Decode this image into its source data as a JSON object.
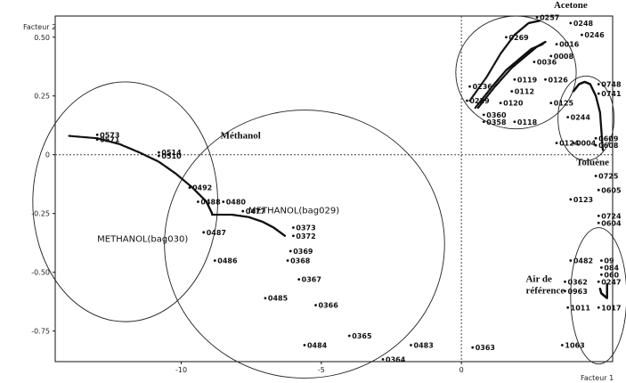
{
  "chart_data": {
    "type": "scatter",
    "title": "",
    "xlabel": "Facteur 1",
    "ylabel": "Facteur 2",
    "xlim": [
      -14.5,
      5.4
    ],
    "ylim": [
      -0.88,
      0.59
    ],
    "x_ticks": [
      {
        "value": -10,
        "label": "-10"
      },
      {
        "value": -5,
        "label": "-5"
      },
      {
        "value": 0,
        "label": "0"
      }
    ],
    "y_ticks": [
      {
        "value": 0.5,
        "label": "0.50"
      },
      {
        "value": 0.25,
        "label": "0.25"
      },
      {
        "value": 0,
        "label": "0"
      },
      {
        "value": -0.25,
        "label": "-0.25"
      },
      {
        "value": -0.5,
        "label": "-0.50"
      },
      {
        "value": -0.75,
        "label": "-0.75"
      }
    ],
    "reference_lines": [
      {
        "axis": "x",
        "value": 0,
        "style": "dotted"
      },
      {
        "axis": "y",
        "value": 0,
        "style": "dotted"
      }
    ],
    "trajectories": [
      {
        "name": "bag030",
        "points": [
          [
            -14,
            0.08
          ],
          [
            -13,
            0.07
          ],
          [
            -12.2,
            0.045
          ],
          [
            -11.5,
            0.01
          ],
          [
            -10.8,
            -0.03
          ],
          [
            -10.2,
            -0.08
          ],
          [
            -9.6,
            -0.14
          ],
          [
            -9.1,
            -0.2
          ],
          [
            -8.9,
            -0.25
          ]
        ]
      },
      {
        "name": "bag029",
        "points": [
          [
            -8.9,
            -0.255
          ],
          [
            -8.2,
            -0.255
          ],
          [
            -7.6,
            -0.265
          ],
          [
            -7.1,
            -0.285
          ],
          [
            -6.7,
            -0.31
          ],
          [
            -6.3,
            -0.345
          ]
        ]
      },
      {
        "name": "acetone-a",
        "points": [
          [
            0.3,
            0.23
          ],
          [
            0.9,
            0.33
          ],
          [
            1.4,
            0.43
          ],
          [
            1.9,
            0.51
          ],
          [
            2.4,
            0.56
          ],
          [
            2.8,
            0.57
          ]
        ]
      },
      {
        "name": "acetone-b",
        "points": [
          [
            0.5,
            0.2
          ],
          [
            1.1,
            0.29
          ],
          [
            1.6,
            0.36
          ],
          [
            2.1,
            0.41
          ],
          [
            2.5,
            0.45
          ],
          [
            2.9,
            0.47
          ]
        ]
      },
      {
        "name": "acetone-c",
        "points": [
          [
            0.6,
            0.2
          ],
          [
            1.2,
            0.29
          ],
          [
            1.8,
            0.37
          ],
          [
            2.3,
            0.42
          ],
          [
            2.7,
            0.46
          ],
          [
            3.0,
            0.48
          ]
        ]
      },
      {
        "name": "toluene",
        "points": [
          [
            4.0,
            0.27
          ],
          [
            4.2,
            0.3
          ],
          [
            4.4,
            0.31
          ],
          [
            4.6,
            0.3
          ],
          [
            4.8,
            0.25
          ],
          [
            4.95,
            0.18
          ],
          [
            5.0,
            0.1
          ],
          [
            5.05,
            0.02
          ]
        ]
      },
      {
        "name": "air",
        "points": [
          [
            4.95,
            -0.57
          ],
          [
            5.0,
            -0.59
          ],
          [
            5.1,
            -0.6
          ],
          [
            5.2,
            -0.61
          ],
          [
            5.2,
            -0.58
          ],
          [
            5.2,
            -0.55
          ]
        ]
      }
    ],
    "labeled_points": [
      {
        "label": "0573",
        "x": -13.0,
        "y": 0.085
      },
      {
        "label": "0571",
        "x": -13.0,
        "y": 0.065
      },
      {
        "label": "0514",
        "x": -10.8,
        "y": 0.01
      },
      {
        "label": "0510",
        "x": -10.8,
        "y": -0.005
      },
      {
        "label": "0492",
        "x": -9.7,
        "y": -0.14
      },
      {
        "label": "0488",
        "x": -9.4,
        "y": -0.2
      },
      {
        "label": "0487",
        "x": -9.2,
        "y": -0.33
      },
      {
        "label": "0486",
        "x": -8.8,
        "y": -0.45
      },
      {
        "label": "0485",
        "x": -7.0,
        "y": -0.61
      },
      {
        "label": "0484",
        "x": -5.6,
        "y": -0.81
      },
      {
        "label": "0480",
        "x": -8.5,
        "y": -0.2
      },
      {
        "label": "0477",
        "x": -7.8,
        "y": -0.24
      },
      {
        "label": "0373",
        "x": -6.0,
        "y": -0.31
      },
      {
        "label": "0372",
        "x": -6.0,
        "y": -0.345
      },
      {
        "label": "0369",
        "x": -6.1,
        "y": -0.41
      },
      {
        "label": "0368",
        "x": -6.2,
        "y": -0.45
      },
      {
        "label": "0367",
        "x": -5.8,
        "y": -0.53
      },
      {
        "label": "0366",
        "x": -5.2,
        "y": -0.64
      },
      {
        "label": "0365",
        "x": -4.0,
        "y": -0.77
      },
      {
        "label": "0364",
        "x": -2.8,
        "y": -0.87
      },
      {
        "label": "0483",
        "x": -1.8,
        "y": -0.81
      },
      {
        "label": "0363",
        "x": 0.4,
        "y": -0.82
      },
      {
        "label": "0257",
        "x": 2.7,
        "y": 0.585
      },
      {
        "label": "0248",
        "x": 3.9,
        "y": 0.56
      },
      {
        "label": "0246",
        "x": 4.3,
        "y": 0.51
      },
      {
        "label": "0269",
        "x": 1.6,
        "y": 0.5
      },
      {
        "label": "0016",
        "x": 3.4,
        "y": 0.47
      },
      {
        "label": "0008",
        "x": 3.2,
        "y": 0.42
      },
      {
        "label": "0036",
        "x": 2.6,
        "y": 0.395
      },
      {
        "label": "0119",
        "x": 1.9,
        "y": 0.32
      },
      {
        "label": "0126",
        "x": 3.0,
        "y": 0.32
      },
      {
        "label": "0236",
        "x": 0.3,
        "y": 0.29
      },
      {
        "label": "0112",
        "x": 1.8,
        "y": 0.27
      },
      {
        "label": "0229",
        "x": 0.2,
        "y": 0.23
      },
      {
        "label": "0120",
        "x": 1.4,
        "y": 0.22
      },
      {
        "label": "0125",
        "x": 3.2,
        "y": 0.22
      },
      {
        "label": "0360",
        "x": 0.8,
        "y": 0.17
      },
      {
        "label": "0358",
        "x": 0.8,
        "y": 0.14
      },
      {
        "label": "0118",
        "x": 1.9,
        "y": 0.14
      },
      {
        "label": "0748",
        "x": 4.9,
        "y": 0.3
      },
      {
        "label": "0741",
        "x": 4.9,
        "y": 0.26
      },
      {
        "label": "0244",
        "x": 3.8,
        "y": 0.16
      },
      {
        "label": "0609",
        "x": 4.8,
        "y": 0.07
      },
      {
        "label": "0608",
        "x": 4.8,
        "y": 0.04
      },
      {
        "label": "0124",
        "x": 3.4,
        "y": 0.05
      },
      {
        "label": "0004",
        "x": 4.0,
        "y": 0.05
      },
      {
        "label": "0725",
        "x": 4.8,
        "y": -0.09
      },
      {
        "label": "0605",
        "x": 4.9,
        "y": -0.15
      },
      {
        "label": "0123",
        "x": 3.9,
        "y": -0.19
      },
      {
        "label": "0724",
        "x": 4.9,
        "y": -0.26
      },
      {
        "label": "0604",
        "x": 4.9,
        "y": -0.29
      },
      {
        "label": "0482",
        "x": 3.9,
        "y": -0.45
      },
      {
        "label": "09",
        "x": 5.0,
        "y": -0.45
      },
      {
        "label": "084",
        "x": 5.0,
        "y": -0.48
      },
      {
        "label": "060",
        "x": 5.0,
        "y": -0.51
      },
      {
        "label": "0362",
        "x": 3.7,
        "y": -0.54
      },
      {
        "label": "0247",
        "x": 4.9,
        "y": -0.54
      },
      {
        "label": "0963",
        "x": 3.7,
        "y": -0.58
      },
      {
        "label": "1011",
        "x": 3.8,
        "y": -0.65
      },
      {
        "label": "1017",
        "x": 4.9,
        "y": -0.65
      },
      {
        "label": "1063",
        "x": 3.6,
        "y": -0.81
      }
    ],
    "ellipses": [
      {
        "cx": -12.0,
        "cy": -0.2,
        "rx": 3.3,
        "ry": 0.51
      },
      {
        "cx": -5.6,
        "cy": -0.38,
        "rx": 5.0,
        "ry": 0.57
      },
      {
        "cx": 1.95,
        "cy": 0.35,
        "rx": 2.15,
        "ry": 0.24
      },
      {
        "cx": 4.45,
        "cy": 0.155,
        "rx": 1.0,
        "ry": 0.18
      },
      {
        "cx": 4.9,
        "cy": -0.6,
        "rx": 1.0,
        "ry": 0.29
      }
    ],
    "group_annotations": [
      {
        "label": "Acetone",
        "x": 3.3,
        "y": 0.625
      },
      {
        "label": "Méthanol",
        "x": -8.6,
        "y": 0.07
      },
      {
        "label": "Toluène",
        "x": 4.1,
        "y": -0.045
      },
      {
        "label": "Air de",
        "x": 2.3,
        "y": -0.54
      },
      {
        "label": "référence",
        "x": 2.3,
        "y": -0.59
      },
      {
        "label": "METHANOL(bag030)",
        "x": -13.0,
        "y": -0.37
      },
      {
        "label": "METHANOL(bag029)",
        "x": -7.6,
        "y": -0.25
      }
    ]
  },
  "ui_text": {
    "x_axis_title": "Facteur 1",
    "y_axis_title": "Facteur 2"
  }
}
